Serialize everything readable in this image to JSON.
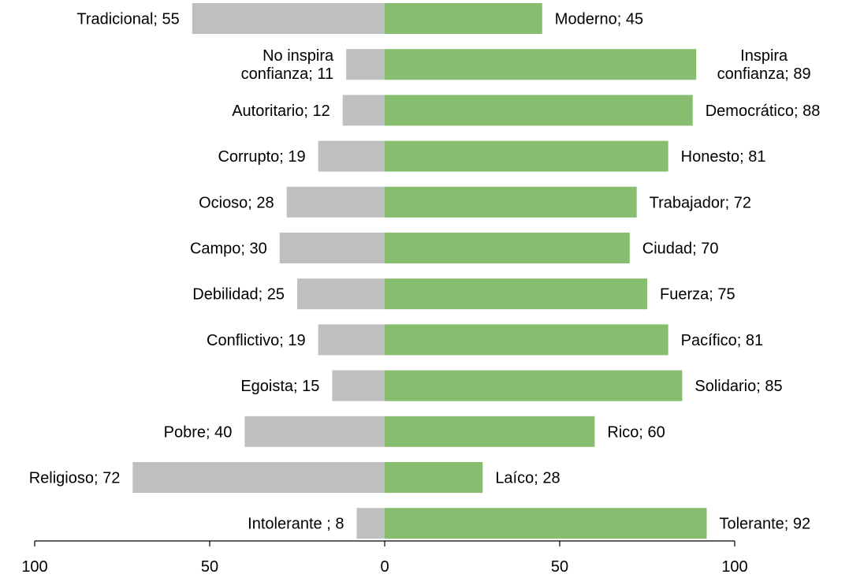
{
  "chart_data": {
    "type": "bar",
    "orientation": "horizontal-diverging",
    "xlim": [
      -100,
      100
    ],
    "xticks": [
      {
        "value": -100,
        "label": "100"
      },
      {
        "value": -50,
        "label": "50"
      },
      {
        "value": 0,
        "label": "0"
      },
      {
        "value": 50,
        "label": "50"
      },
      {
        "value": 100,
        "label": "100"
      }
    ],
    "colors": {
      "left": "#bfbfbf",
      "right": "#86bd6f"
    },
    "rows": [
      {
        "left_label": [
          "Tradicional; 55"
        ],
        "left_value": 55,
        "right_label": [
          "Moderno; 45"
        ],
        "right_value": 45
      },
      {
        "left_label": [
          "No inspira",
          "confianza; 11"
        ],
        "left_value": 11,
        "right_label": [
          "Inspira",
          "confianza; 89"
        ],
        "right_value": 89
      },
      {
        "left_label": [
          "Autoritario; 12"
        ],
        "left_value": 12,
        "right_label": [
          "Democrático; 88"
        ],
        "right_value": 88
      },
      {
        "left_label": [
          "Corrupto; 19"
        ],
        "left_value": 19,
        "right_label": [
          "Honesto; 81"
        ],
        "right_value": 81
      },
      {
        "left_label": [
          "Ocioso; 28"
        ],
        "left_value": 28,
        "right_label": [
          "Trabajador; 72"
        ],
        "right_value": 72
      },
      {
        "left_label": [
          "Campo; 30"
        ],
        "left_value": 30,
        "right_label": [
          "Ciudad; 70"
        ],
        "right_value": 70
      },
      {
        "left_label": [
          "Debilidad; 25"
        ],
        "left_value": 25,
        "right_label": [
          "Fuerza; 75"
        ],
        "right_value": 75
      },
      {
        "left_label": [
          "Conflictivo; 19"
        ],
        "left_value": 19,
        "right_label": [
          "Pacífico; 81"
        ],
        "right_value": 81
      },
      {
        "left_label": [
          "Egoista; 15"
        ],
        "left_value": 15,
        "right_label": [
          "Solidario; 85"
        ],
        "right_value": 85
      },
      {
        "left_label": [
          "Pobre; 40"
        ],
        "left_value": 40,
        "right_label": [
          "Rico; 60"
        ],
        "right_value": 60
      },
      {
        "left_label": [
          "Religioso; 72"
        ],
        "left_value": 72,
        "right_label": [
          "Laíco; 28"
        ],
        "right_value": 28
      },
      {
        "left_label": [
          "Intolerante ; 8"
        ],
        "left_value": 8,
        "right_label": [
          "Tolerante; 92"
        ],
        "right_value": 92
      }
    ]
  }
}
